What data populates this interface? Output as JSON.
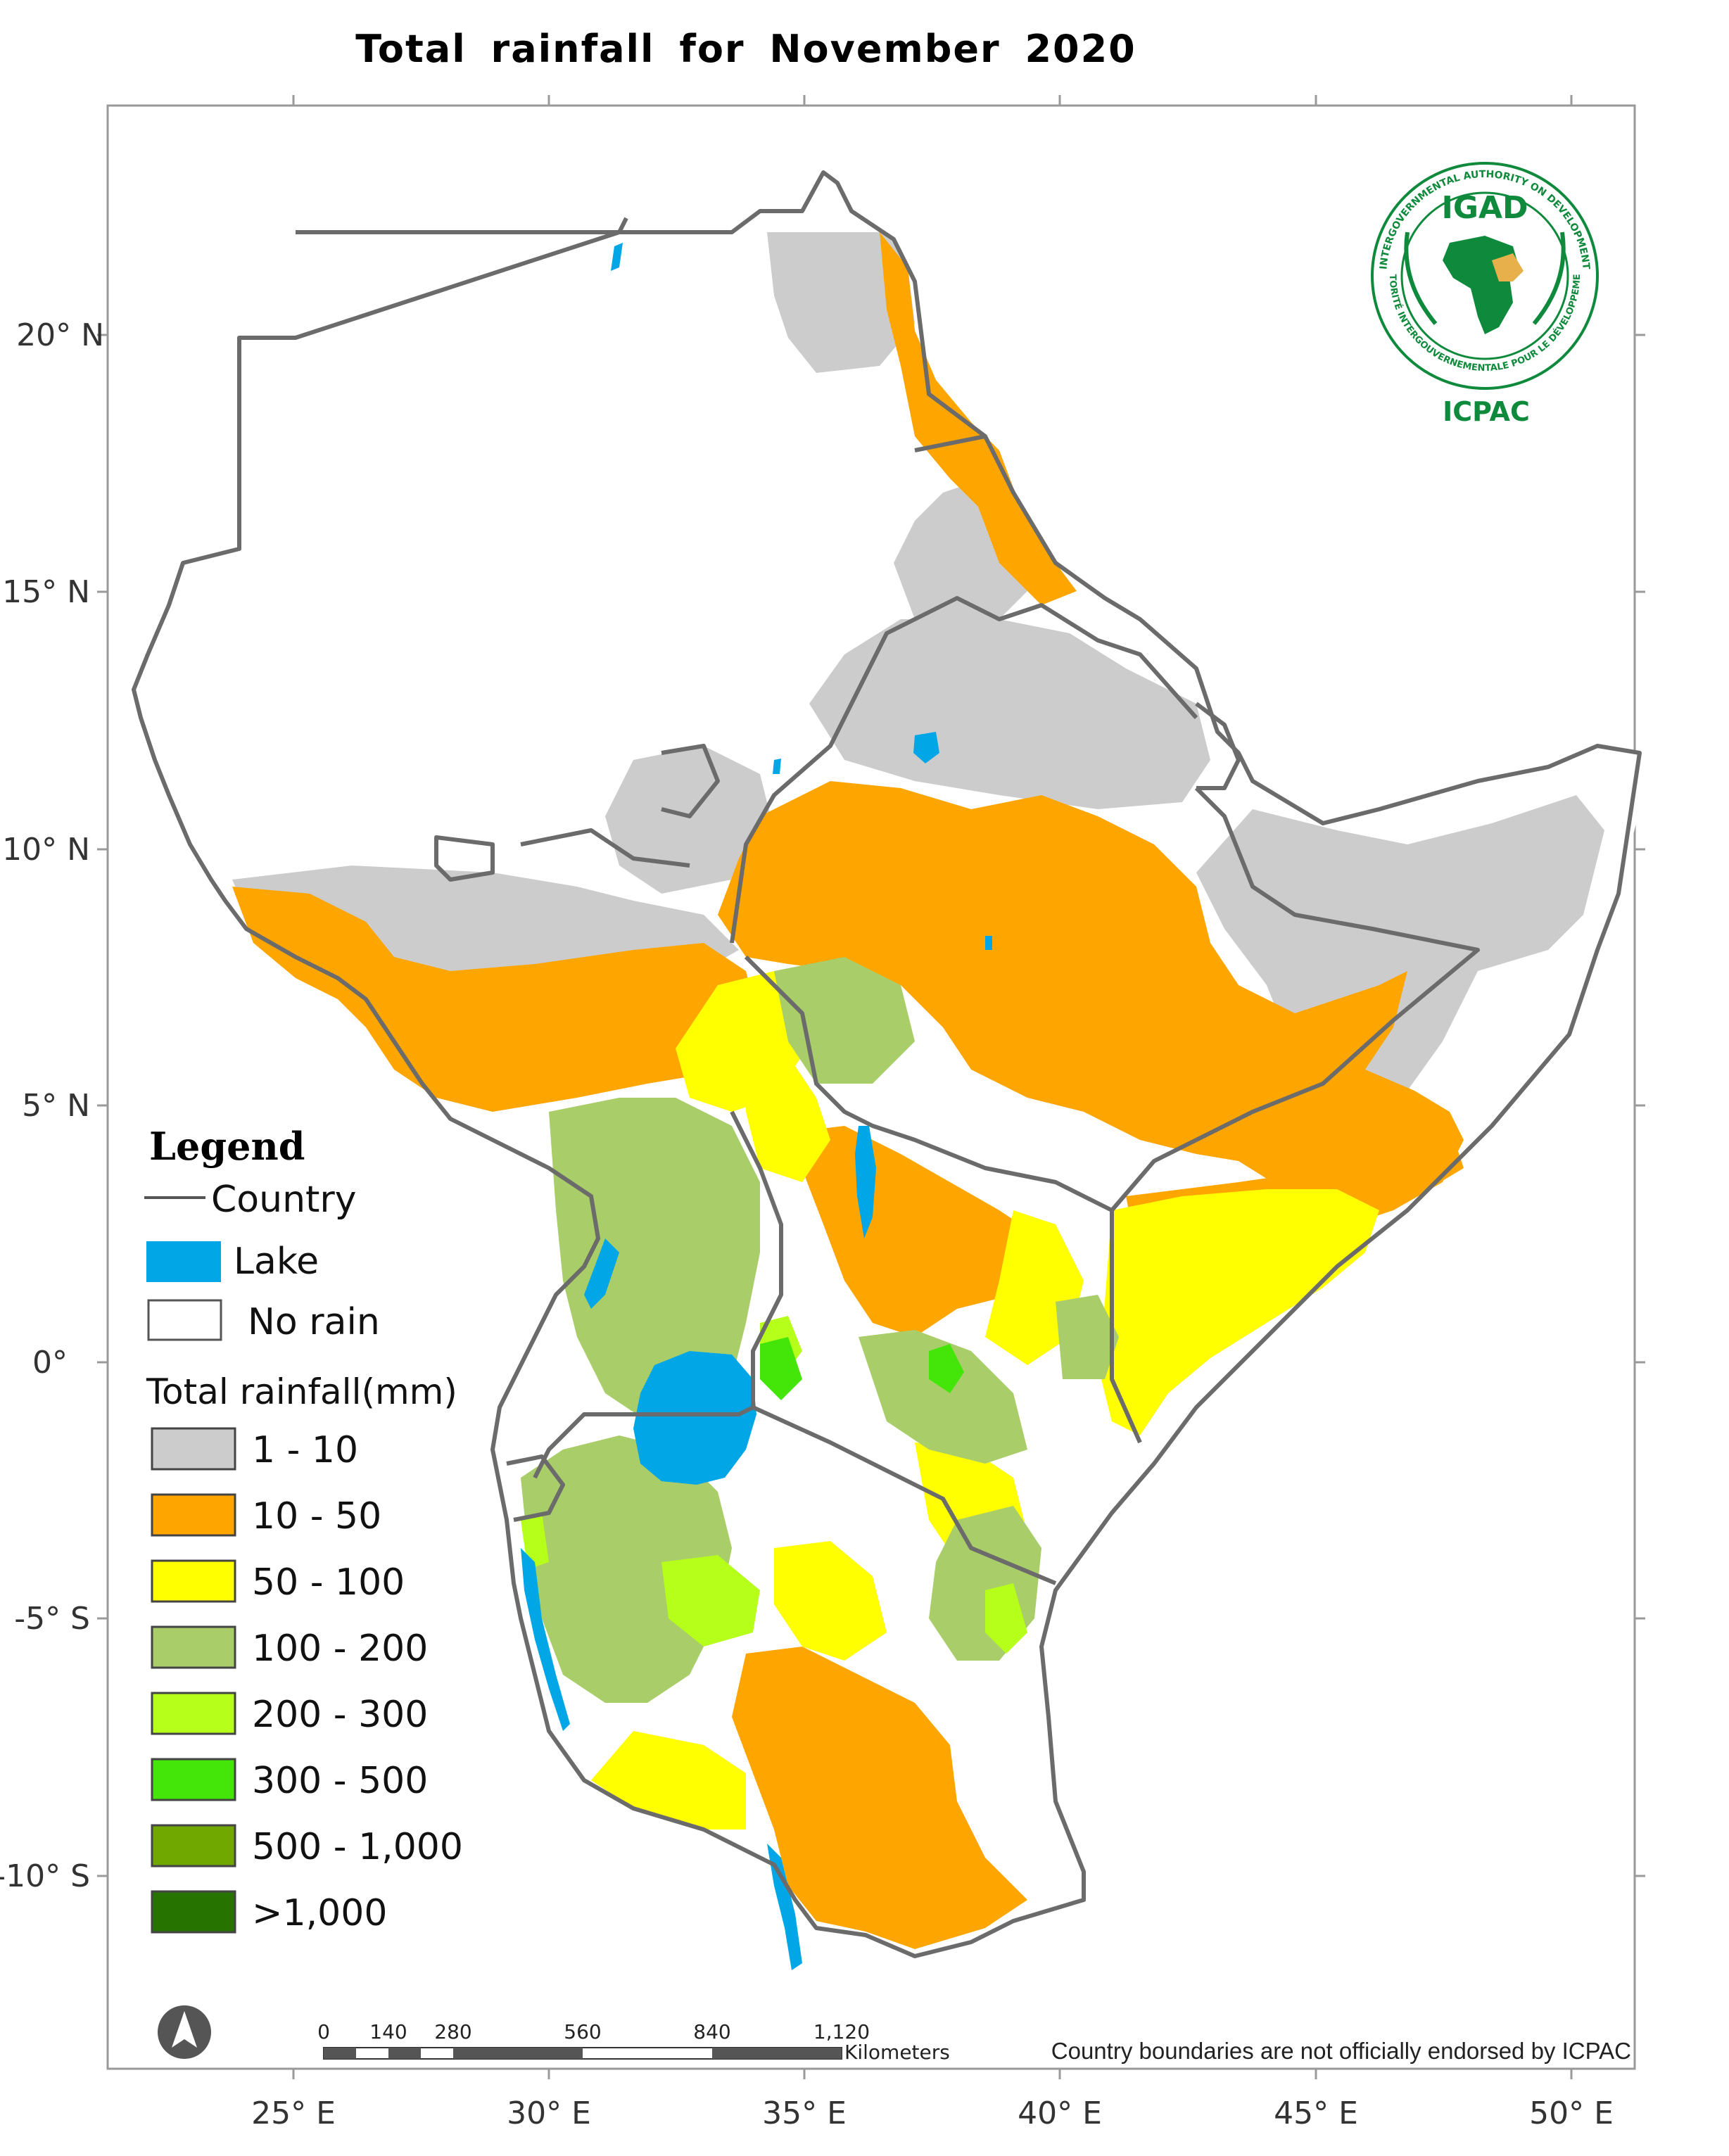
{
  "title": "Total rainfall for November 2020",
  "axes": {
    "x_ticks": [
      "25° E",
      "30° E",
      "35° E",
      "40° E",
      "45° E",
      "50° E"
    ],
    "y_ticks": [
      "20° N",
      "15° N",
      "10° N",
      "5° N",
      "0°",
      "-5° S",
      "-10° S"
    ]
  },
  "legend": {
    "heading": "Legend",
    "country_label": "Country",
    "lake_label": "Lake",
    "no_rain_label": "No rain",
    "rainfall_heading": "Total rainfall(mm)",
    "classes": [
      {
        "label": "1 - 10",
        "color": "#cccccc"
      },
      {
        "label": "10 - 50",
        "color": "#ffa500"
      },
      {
        "label": "50 - 100",
        "color": "#ffff00"
      },
      {
        "label": "100 - 200",
        "color": "#a9cd68"
      },
      {
        "label": "200 - 300",
        "color": "#b6ff1a"
      },
      {
        "label": "300 - 500",
        "color": "#44e60a"
      },
      {
        "label": "500 - 1,000",
        "color": "#70a800"
      },
      {
        "label": ">1,000",
        "color": "#267300"
      }
    ],
    "lake_color": "#00a6e6",
    "no_rain_color": "#ffffff"
  },
  "scale_bar": {
    "ticks": [
      "0",
      "140",
      "280",
      "560",
      "840",
      "1,120"
    ],
    "unit": "Kilometers"
  },
  "disclaimer": "Country boundaries are not officially endorsed by ICPAC",
  "logo": {
    "top_text": "IGAD",
    "bottom_text": "ICPAC",
    "ring_text_top": "INTERGOVERNMENTAL AUTHORITY ON DEVELOPMENT",
    "ring_text_bottom": "AUTORITÉ INTERGOUVERNEMENTALE POUR LE DÉVELOPPEMENT",
    "color": "#0f8a3c",
    "accent": "#e8b04a"
  },
  "north_arrow_icon": "north-arrow-icon",
  "colors": {
    "country_border": "#6b6b6b",
    "frame": "#999999"
  }
}
